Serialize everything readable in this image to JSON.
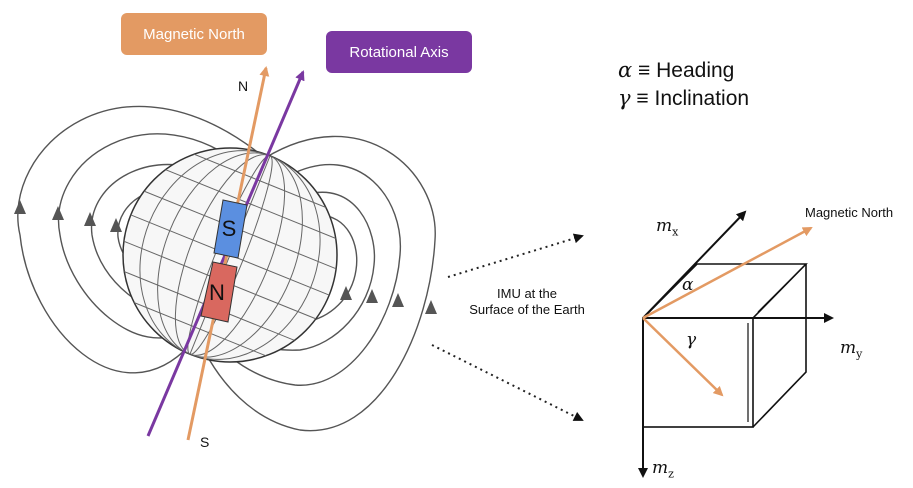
{
  "labels": {
    "magnetic_north_box": "Magnetic North",
    "rotational_axis_box": "Rotational Axis",
    "pole_n": "N",
    "pole_s": "S",
    "magnet_s": "S",
    "magnet_n": "N",
    "imu_line1": "IMU at the",
    "imu_line2": "Surface of the Earth",
    "magnetic_north_vector": "Magnetic North"
  },
  "legend": {
    "alpha_symbol": "α",
    "alpha_text": "≡ Heading",
    "gamma_symbol": "γ",
    "gamma_text": "≡ Inclination"
  },
  "axes": {
    "mx_base": "m",
    "mx_sub": "x",
    "my_base": "m",
    "my_sub": "y",
    "mz_base": "m",
    "mz_sub": "z",
    "alpha": "α",
    "gamma": "γ"
  },
  "colors": {
    "magnetic_north": "#e39a63",
    "rotational_axis": "#7a38a1",
    "magnet_s": "#5b8fe0",
    "magnet_n": "#d9685f",
    "field_lines": "#555555"
  }
}
